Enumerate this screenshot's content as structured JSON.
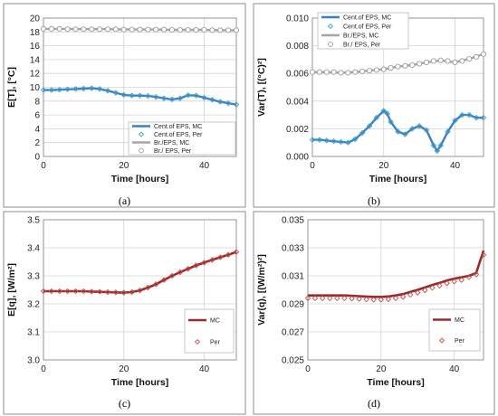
{
  "chart_data": [
    {
      "type": "line",
      "caption": "(a)",
      "xlabel": "Time [hours]",
      "ylabel": "E[T], [°C]",
      "xlim": [
        0,
        48
      ],
      "ylim": [
        0,
        20
      ],
      "xticks": [
        0,
        20,
        40
      ],
      "yticks": [
        0,
        2,
        4,
        6,
        8,
        10,
        12,
        14,
        16,
        18,
        20
      ],
      "ytick_labels": [
        "0",
        "2",
        "4",
        "6",
        "8",
        "10",
        "12",
        "14",
        "16",
        "18",
        "20"
      ],
      "grid": true,
      "legend": "bottom-right",
      "series": [
        {
          "name": "Cent.of EPS, MC",
          "style": "line",
          "color": "#3c7fc4",
          "x": [
            0,
            2,
            4,
            6,
            8,
            10,
            12,
            14,
            16,
            18,
            20,
            22,
            24,
            26,
            28,
            30,
            32,
            34,
            36,
            38,
            40,
            42,
            44,
            46,
            48
          ],
          "y": [
            9.6,
            9.6,
            9.65,
            9.7,
            9.75,
            9.8,
            9.85,
            9.75,
            9.5,
            9.2,
            8.9,
            8.8,
            8.8,
            8.75,
            8.6,
            8.4,
            8.25,
            8.4,
            8.85,
            8.8,
            8.5,
            8.2,
            7.9,
            7.7,
            7.5
          ]
        },
        {
          "name": "Cent.of EPS, Per",
          "style": "diamond",
          "color": "#3aa0c8",
          "x": [
            0,
            2,
            4,
            6,
            8,
            10,
            12,
            14,
            16,
            18,
            20,
            22,
            24,
            26,
            28,
            30,
            32,
            34,
            36,
            38,
            40,
            42,
            44,
            46,
            48
          ],
          "y": [
            9.6,
            9.6,
            9.65,
            9.7,
            9.75,
            9.8,
            9.85,
            9.75,
            9.5,
            9.2,
            8.9,
            8.8,
            8.8,
            8.75,
            8.6,
            8.4,
            8.25,
            8.4,
            8.85,
            8.8,
            8.5,
            8.2,
            7.9,
            7.7,
            7.5
          ]
        },
        {
          "name": "Br./EPS, MC",
          "style": "line",
          "color": "#a6a6a6",
          "x": [
            0,
            4,
            8,
            12,
            16,
            20,
            24,
            28,
            32,
            36,
            40,
            44,
            48
          ],
          "y": [
            18.45,
            18.45,
            18.4,
            18.4,
            18.4,
            18.35,
            18.35,
            18.35,
            18.3,
            18.3,
            18.3,
            18.25,
            18.25
          ]
        },
        {
          "name": "Br./ EPS, Per",
          "style": "circle",
          "color": "#9a9a9a",
          "x": [
            0,
            2,
            4,
            6,
            8,
            10,
            12,
            14,
            16,
            18,
            20,
            22,
            24,
            26,
            28,
            30,
            32,
            34,
            36,
            38,
            40,
            42,
            44,
            46,
            48
          ],
          "y": [
            18.45,
            18.45,
            18.45,
            18.4,
            18.4,
            18.4,
            18.4,
            18.4,
            18.4,
            18.4,
            18.35,
            18.35,
            18.35,
            18.35,
            18.35,
            18.35,
            18.3,
            18.3,
            18.3,
            18.3,
            18.3,
            18.25,
            18.25,
            18.25,
            18.25
          ]
        }
      ]
    },
    {
      "type": "line",
      "caption": "(b)",
      "xlabel": "Time [hours]",
      "ylabel": "Var(T), [(°C)²]",
      "xlim": [
        0,
        48
      ],
      "ylim": [
        0,
        0.01
      ],
      "xticks": [
        0,
        20,
        40
      ],
      "yticks": [
        0,
        0.002,
        0.004,
        0.006,
        0.008,
        0.01
      ],
      "ytick_labels": [
        "0.000",
        "0.002",
        "0.004",
        "0.006",
        "0.008",
        "0.010"
      ],
      "grid": true,
      "legend": "top-left",
      "series": [
        {
          "name": "Cent.of EPS, MC",
          "style": "line",
          "color": "#3c7fc4",
          "x": [
            0,
            2,
            4,
            6,
            8,
            10,
            12,
            14,
            16,
            18,
            20,
            21,
            22,
            24,
            26,
            28,
            30,
            32,
            34,
            35,
            36,
            38,
            40,
            42,
            44,
            46,
            48
          ],
          "y": [
            0.0012,
            0.0012,
            0.00115,
            0.0011,
            0.00105,
            0.001,
            0.00125,
            0.0017,
            0.0022,
            0.0028,
            0.0033,
            0.0031,
            0.0025,
            0.0018,
            0.0016,
            0.002,
            0.0022,
            0.0019,
            0.0008,
            0.0004,
            0.0008,
            0.0018,
            0.0026,
            0.003,
            0.003,
            0.0028,
            0.0028
          ]
        },
        {
          "name": "Cent.of EPS, Per",
          "style": "diamond",
          "color": "#3aa0c8",
          "x": [
            0,
            2,
            4,
            6,
            8,
            10,
            12,
            14,
            16,
            18,
            20,
            21,
            22,
            24,
            26,
            28,
            30,
            32,
            34,
            35,
            36,
            38,
            40,
            42,
            44,
            46,
            48
          ],
          "y": [
            0.0012,
            0.0012,
            0.00115,
            0.0011,
            0.00105,
            0.001,
            0.00125,
            0.0017,
            0.0022,
            0.0028,
            0.0033,
            0.0031,
            0.0025,
            0.0018,
            0.0016,
            0.002,
            0.0022,
            0.0019,
            0.0008,
            0.0004,
            0.0008,
            0.0018,
            0.0026,
            0.003,
            0.003,
            0.0028,
            0.0028
          ]
        },
        {
          "name": "Br./EPS, MC",
          "style": "line",
          "color": "#a6a6a6",
          "x": [
            0,
            4,
            8,
            12,
            16,
            20,
            24,
            28,
            32,
            36,
            40,
            44,
            48
          ],
          "y": [
            0.0061,
            0.0061,
            0.00605,
            0.0061,
            0.0062,
            0.0063,
            0.0065,
            0.0066,
            0.0068,
            0.00695,
            0.0068,
            0.00705,
            0.0074
          ]
        },
        {
          "name": "Br./ EPS, Per",
          "style": "circle",
          "color": "#9a9a9a",
          "x": [
            0,
            2,
            4,
            6,
            8,
            10,
            12,
            14,
            16,
            18,
            20,
            22,
            24,
            26,
            28,
            30,
            32,
            34,
            36,
            38,
            40,
            42,
            44,
            46,
            48
          ],
          "y": [
            0.0061,
            0.0061,
            0.0061,
            0.0061,
            0.00605,
            0.00605,
            0.0061,
            0.00615,
            0.0062,
            0.00625,
            0.0063,
            0.0064,
            0.0065,
            0.00655,
            0.0066,
            0.0067,
            0.0068,
            0.0069,
            0.00695,
            0.0069,
            0.0068,
            0.0069,
            0.00705,
            0.0072,
            0.0074
          ]
        }
      ]
    },
    {
      "type": "line",
      "caption": "(c)",
      "xlabel": "Time [hours]",
      "ylabel": "E[q], [W/m²]",
      "xlim": [
        0,
        48
      ],
      "ylim": [
        3.0,
        3.5
      ],
      "xticks": [
        0,
        20,
        40
      ],
      "yticks": [
        3.0,
        3.1,
        3.2,
        3.3,
        3.4,
        3.5
      ],
      "ytick_labels": [
        "3.0",
        "3.1",
        "3.2",
        "3.3",
        "3.4",
        "3.5"
      ],
      "grid": true,
      "legend": "bottom-right",
      "series": [
        {
          "name": "MC",
          "style": "line",
          "color": "#9b2a2a",
          "x": [
            0,
            2,
            4,
            6,
            8,
            10,
            12,
            14,
            16,
            18,
            20,
            22,
            24,
            26,
            28,
            30,
            32,
            34,
            36,
            38,
            40,
            42,
            44,
            46,
            48
          ],
          "y": [
            3.245,
            3.245,
            3.245,
            3.245,
            3.245,
            3.245,
            3.244,
            3.243,
            3.242,
            3.241,
            3.24,
            3.242,
            3.248,
            3.258,
            3.27,
            3.285,
            3.3,
            3.313,
            3.325,
            3.337,
            3.347,
            3.357,
            3.366,
            3.375,
            3.385
          ]
        },
        {
          "name": "Per",
          "style": "diamond",
          "color": "#c0504d",
          "x": [
            0,
            2,
            4,
            6,
            8,
            10,
            12,
            14,
            16,
            18,
            20,
            22,
            24,
            26,
            28,
            30,
            32,
            34,
            36,
            38,
            40,
            42,
            44,
            46,
            48
          ],
          "y": [
            3.245,
            3.245,
            3.245,
            3.245,
            3.245,
            3.245,
            3.244,
            3.243,
            3.242,
            3.241,
            3.24,
            3.242,
            3.248,
            3.258,
            3.27,
            3.285,
            3.3,
            3.313,
            3.325,
            3.337,
            3.347,
            3.357,
            3.366,
            3.375,
            3.385
          ]
        }
      ]
    },
    {
      "type": "line",
      "caption": "(d)",
      "xlabel": "Time [hours]",
      "ylabel": "Var(q), [(W/m²)²]",
      "xlim": [
        0,
        48
      ],
      "ylim": [
        0.025,
        0.035
      ],
      "xticks": [
        0,
        20,
        40
      ],
      "yticks": [
        0.025,
        0.027,
        0.029,
        0.031,
        0.033,
        0.035
      ],
      "ytick_labels": [
        "0.025",
        "0.027",
        "0.029",
        "0.031",
        "0.033",
        "0.035"
      ],
      "grid": true,
      "legend": "bottom-right",
      "series": [
        {
          "name": "MC",
          "style": "line",
          "color": "#9b2a2a",
          "x": [
            0,
            2,
            4,
            6,
            8,
            10,
            12,
            14,
            16,
            18,
            20,
            22,
            24,
            26,
            28,
            30,
            32,
            34,
            36,
            38,
            40,
            42,
            44,
            46,
            48
          ],
          "y": [
            0.0296,
            0.0296,
            0.0296,
            0.0296,
            0.0296,
            0.0296,
            0.02958,
            0.02955,
            0.02952,
            0.0295,
            0.0295,
            0.02953,
            0.0296,
            0.0297,
            0.02985,
            0.03,
            0.03017,
            0.03035,
            0.0305,
            0.03067,
            0.0308,
            0.0309,
            0.031,
            0.0312,
            0.0328
          ]
        },
        {
          "name": "Per",
          "style": "diamond",
          "color": "#c0504d",
          "x": [
            0,
            2,
            4,
            6,
            8,
            10,
            12,
            14,
            16,
            18,
            20,
            22,
            24,
            26,
            28,
            30,
            32,
            34,
            36,
            38,
            40,
            42,
            44,
            46,
            48
          ],
          "y": [
            0.0294,
            0.0294,
            0.0294,
            0.0294,
            0.0294,
            0.0294,
            0.02938,
            0.02935,
            0.02932,
            0.0293,
            0.0293,
            0.02933,
            0.0294,
            0.0295,
            0.02965,
            0.0298,
            0.02997,
            0.03015,
            0.0303,
            0.03047,
            0.0306,
            0.0307,
            0.0309,
            0.0311,
            0.0325
          ]
        }
      ]
    }
  ]
}
